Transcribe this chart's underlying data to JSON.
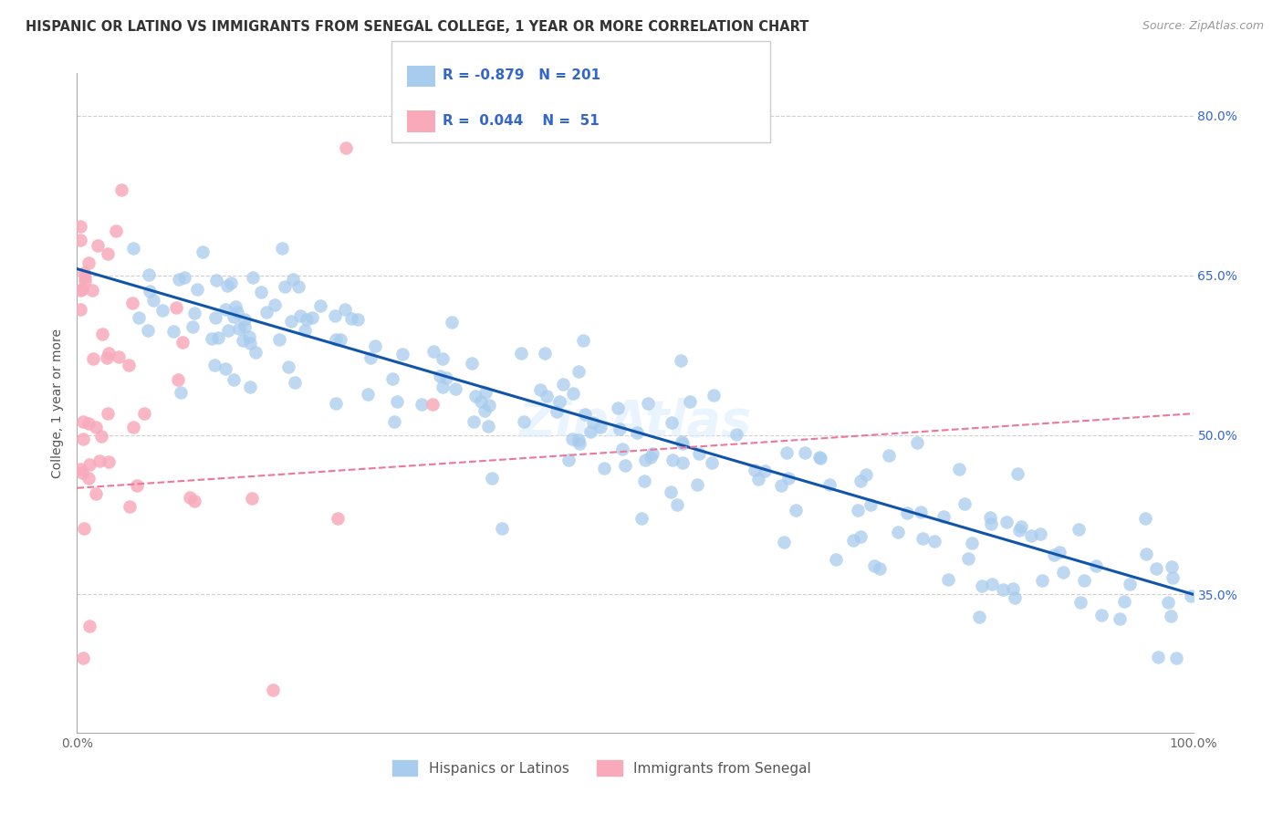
{
  "title": "HISPANIC OR LATINO VS IMMIGRANTS FROM SENEGAL COLLEGE, 1 YEAR OR MORE CORRELATION CHART",
  "source_text": "Source: ZipAtlas.com",
  "ylabel": "College, 1 year or more",
  "watermark": "ZipAtlas",
  "xlim": [
    0,
    100
  ],
  "ylim": [
    22,
    84
  ],
  "yticks_right": [
    35.0,
    50.0,
    65.0,
    80.0
  ],
  "grid_color": "#bbbbbb",
  "series_blue": {
    "name": "Hispanics or Latinos",
    "color": "#A8CCEE",
    "trend_color": "#1155AA",
    "R": -0.879,
    "N": 201,
    "trend_x0": 2,
    "trend_y0": 65,
    "trend_x1": 100,
    "trend_y1": 35
  },
  "series_pink": {
    "name": "Immigrants from Senegal",
    "color": "#F8AABB",
    "trend_color": "#EE7799",
    "R": 0.044,
    "N": 51,
    "trend_x0": 0,
    "trend_y0": 45,
    "trend_x1": 100,
    "trend_y1": 52
  },
  "legend": {
    "R1": "-0.879",
    "N1": "201",
    "R2": "0.044",
    "N2": " 51",
    "color1": "#A8CCEE",
    "color2": "#F8AABB",
    "text_color": "#3366CC"
  },
  "background_color": "#ffffff",
  "title_fontsize": 10.5,
  "axis_label_fontsize": 10
}
